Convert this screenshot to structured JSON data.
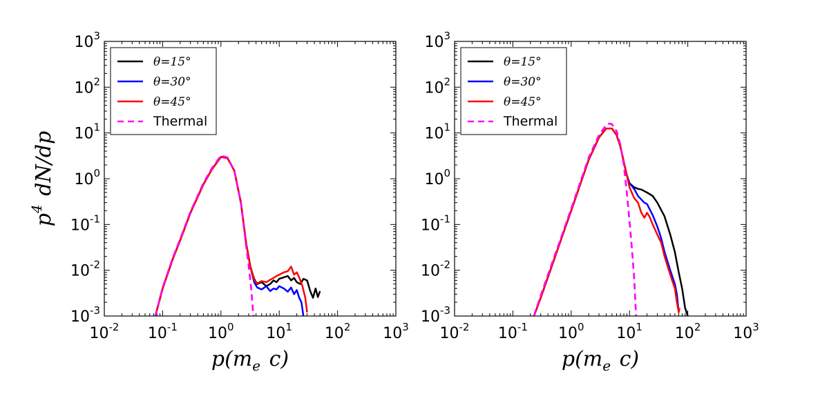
{
  "chart_data": [
    {
      "type": "line",
      "panel": "left",
      "xscale": "log",
      "yscale": "log",
      "xlim": [
        0.01,
        1000
      ],
      "ylim": [
        0.001,
        1000
      ],
      "xlabel": "p(m_e c)",
      "ylabel": "p^4 dN/dp",
      "xtick_labels": [
        "10^-2",
        "10^-1",
        "10^0",
        "10^1",
        "10^2",
        "10^3"
      ],
      "ytick_labels": [
        "10^-3",
        "10^-2",
        "10^-1",
        "10^0",
        "10^1",
        "10^2",
        "10^3"
      ],
      "legend_position": "top-left",
      "series": [
        {
          "name": "θ=15°",
          "color": "#000000",
          "style": "solid",
          "x": [
            0.075,
            0.1,
            0.15,
            0.2,
            0.3,
            0.5,
            0.7,
            1.0,
            1.3,
            1.7,
            2.2,
            2.7,
            3.2,
            3.7,
            4.2,
            5,
            6,
            7,
            8,
            9,
            10,
            12,
            14,
            16,
            18,
            20,
            23,
            26,
            30,
            34,
            38,
            42,
            46,
            50
          ],
          "y": [
            0.001,
            0.004,
            0.018,
            0.045,
            0.18,
            0.75,
            1.6,
            3.0,
            2.8,
            1.5,
            0.3,
            0.04,
            0.012,
            0.0065,
            0.005,
            0.0055,
            0.0045,
            0.005,
            0.006,
            0.0055,
            0.0065,
            0.007,
            0.0075,
            0.006,
            0.0068,
            0.0055,
            0.005,
            0.0065,
            0.006,
            0.0035,
            0.0025,
            0.004,
            0.0026,
            0.0035
          ]
        },
        {
          "name": "θ=30°",
          "color": "#0000ff",
          "style": "solid",
          "x": [
            0.075,
            0.1,
            0.15,
            0.2,
            0.3,
            0.5,
            0.7,
            1.0,
            1.3,
            1.7,
            2.2,
            2.7,
            3.2,
            3.7,
            4.2,
            5,
            6,
            7,
            8,
            9,
            10,
            12,
            14,
            16,
            18,
            20,
            22,
            24,
            26
          ],
          "y": [
            0.001,
            0.004,
            0.018,
            0.045,
            0.18,
            0.75,
            1.6,
            3.0,
            2.8,
            1.5,
            0.3,
            0.04,
            0.012,
            0.0055,
            0.0042,
            0.0038,
            0.0045,
            0.0035,
            0.004,
            0.0038,
            0.0045,
            0.004,
            0.0034,
            0.0042,
            0.003,
            0.0037,
            0.0025,
            0.002,
            0.001
          ]
        },
        {
          "name": "θ=45°",
          "color": "#ff0000",
          "style": "solid",
          "x": [
            0.075,
            0.1,
            0.15,
            0.2,
            0.3,
            0.5,
            0.7,
            1.0,
            1.3,
            1.7,
            2.2,
            2.7,
            3.2,
            3.7,
            4.2,
            5,
            6,
            7,
            8,
            9,
            10,
            12,
            14,
            16,
            18,
            20,
            22,
            25,
            28,
            30
          ],
          "y": [
            0.001,
            0.004,
            0.018,
            0.045,
            0.18,
            0.75,
            1.6,
            3.0,
            2.8,
            1.5,
            0.3,
            0.04,
            0.012,
            0.006,
            0.0052,
            0.0058,
            0.0055,
            0.0062,
            0.0068,
            0.0075,
            0.008,
            0.009,
            0.0095,
            0.012,
            0.008,
            0.009,
            0.007,
            0.0045,
            0.0025,
            0.0012
          ]
        },
        {
          "name": "Thermal",
          "color": "#ff00ff",
          "style": "dashed",
          "x": [
            0.075,
            0.1,
            0.15,
            0.2,
            0.3,
            0.5,
            0.7,
            1.0,
            1.3,
            1.7,
            2.2,
            2.7,
            3.0,
            3.3,
            3.6
          ],
          "y": [
            0.001,
            0.0042,
            0.019,
            0.048,
            0.19,
            0.8,
            1.7,
            3.2,
            2.9,
            1.5,
            0.3,
            0.035,
            0.012,
            0.004,
            0.001
          ]
        }
      ]
    },
    {
      "type": "line",
      "panel": "right",
      "xscale": "log",
      "yscale": "log",
      "xlim": [
        0.01,
        1000
      ],
      "ylim": [
        0.001,
        1000
      ],
      "xlabel": "p(m_e c)",
      "ylabel": "",
      "xtick_labels": [
        "10^-2",
        "10^-1",
        "10^0",
        "10^1",
        "10^2",
        "10^3"
      ],
      "ytick_labels": [
        "10^-3",
        "10^-2",
        "10^-1",
        "10^0",
        "10^1",
        "10^2",
        "10^3"
      ],
      "legend_position": "top-left",
      "series": [
        {
          "name": "θ=15°",
          "color": "#000000",
          "style": "solid",
          "x": [
            0.23,
            0.3,
            0.5,
            0.7,
            1.0,
            1.5,
            2.0,
            3.0,
            4.0,
            5.0,
            6.0,
            7.0,
            8.0,
            9.0,
            10,
            12,
            14,
            16,
            20,
            25,
            30,
            40,
            50,
            60,
            70,
            80,
            90,
            100
          ],
          "y": [
            0.001,
            0.0025,
            0.016,
            0.055,
            0.2,
            0.9,
            2.6,
            8.0,
            12.5,
            12.5,
            9.0,
            5.0,
            2.3,
            1.2,
            0.8,
            0.65,
            0.6,
            0.58,
            0.5,
            0.42,
            0.3,
            0.15,
            0.06,
            0.025,
            0.009,
            0.004,
            0.0015,
            0.001
          ]
        },
        {
          "name": "θ=30°",
          "color": "#0000ff",
          "style": "solid",
          "x": [
            0.23,
            0.3,
            0.5,
            0.7,
            1.0,
            1.5,
            2.0,
            3.0,
            4.0,
            5.0,
            6.0,
            7.0,
            8.0,
            9.0,
            10,
            12,
            14,
            16,
            18,
            20,
            25,
            30,
            35,
            40,
            50,
            60,
            65,
            70
          ],
          "y": [
            0.001,
            0.0025,
            0.016,
            0.055,
            0.2,
            0.9,
            2.6,
            8.0,
            12.5,
            12.5,
            9.0,
            5.0,
            2.3,
            1.2,
            0.8,
            0.6,
            0.42,
            0.35,
            0.3,
            0.28,
            0.16,
            0.09,
            0.05,
            0.025,
            0.01,
            0.005,
            0.003,
            0.0012
          ]
        },
        {
          "name": "θ=45°",
          "color": "#ff0000",
          "style": "solid",
          "x": [
            0.23,
            0.3,
            0.5,
            0.7,
            1.0,
            1.5,
            2.0,
            3.0,
            4.0,
            5.0,
            6.0,
            7.0,
            8.0,
            9.0,
            10,
            12,
            14,
            16,
            18,
            20,
            22,
            25,
            30,
            35,
            40,
            50,
            60,
            65,
            70,
            72
          ],
          "y": [
            0.001,
            0.0025,
            0.016,
            0.055,
            0.2,
            0.9,
            2.6,
            8.0,
            12.5,
            12.5,
            9.0,
            5.0,
            2.3,
            1.2,
            0.65,
            0.38,
            0.3,
            0.18,
            0.14,
            0.18,
            0.15,
            0.1,
            0.06,
            0.04,
            0.02,
            0.008,
            0.004,
            0.002,
            0.0012,
            0.0015
          ]
        },
        {
          "name": "Thermal",
          "color": "#ff00ff",
          "style": "dashed",
          "x": [
            0.23,
            0.3,
            0.5,
            0.7,
            1.0,
            1.5,
            2.0,
            3.0,
            4.0,
            4.5,
            5.0,
            6.0,
            7.0,
            8.0,
            9.0,
            10,
            11,
            12,
            12.6,
            13
          ],
          "y": [
            0.001,
            0.0028,
            0.018,
            0.06,
            0.22,
            1.0,
            2.9,
            9.0,
            15.0,
            16.0,
            15.5,
            11.0,
            5.5,
            2.0,
            0.5,
            0.12,
            0.03,
            0.007,
            0.002,
            0.001
          ]
        }
      ]
    }
  ]
}
